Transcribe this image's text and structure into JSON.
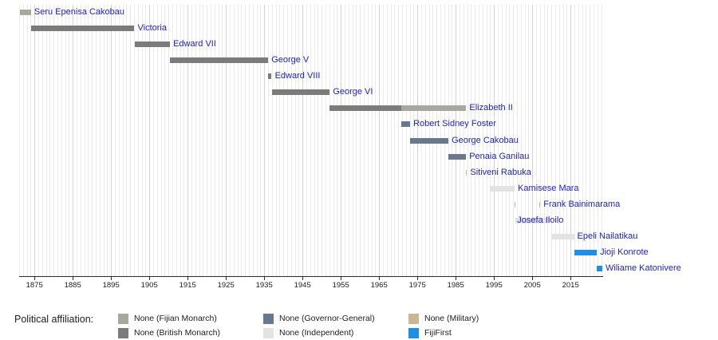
{
  "chart_data": {
    "type": "timeline",
    "title": "",
    "x_axis": {
      "start": 1871,
      "end": 2023.5,
      "ticks": [
        1875,
        1885,
        1895,
        1905,
        1915,
        1925,
        1935,
        1945,
        1955,
        1965,
        1975,
        1985,
        1995,
        2005,
        2015
      ],
      "gridline_interval": 1
    },
    "colors": {
      "fijian_monarch": "#a9a89e",
      "british_monarch": "#7b7b7b",
      "governor_general": "#68788e",
      "independent": "#e3e3e3",
      "military": "#c8b795",
      "fijifirst": "#1e8fe6",
      "person_label_text": "#2121c8",
      "axis": "#2a2a2a",
      "gridline_minor": "#ebebeb",
      "gridline_major": "#d2d2d2"
    },
    "rows": [
      {
        "name": "Seru Epenisa Cakobau",
        "label_anchor": "end",
        "segments": [
          {
            "start": 1871.3,
            "end": 1874.1,
            "affiliation": "fijian_monarch"
          }
        ]
      },
      {
        "name": "Victoria",
        "label_anchor": "end",
        "segments": [
          {
            "start": 1874.1,
            "end": 1901.1,
            "affiliation": "british_monarch"
          }
        ]
      },
      {
        "name": "Edward VII",
        "label_anchor": "end",
        "segments": [
          {
            "start": 1901.1,
            "end": 1910.4,
            "affiliation": "british_monarch"
          }
        ]
      },
      {
        "name": "George V",
        "label_anchor": "end",
        "segments": [
          {
            "start": 1910.4,
            "end": 1936.05,
            "affiliation": "british_monarch"
          }
        ]
      },
      {
        "name": "Edward VIII",
        "label_anchor": "end",
        "segments": [
          {
            "start": 1936.05,
            "end": 1936.95,
            "affiliation": "british_monarch"
          }
        ]
      },
      {
        "name": "George VI",
        "label_anchor": "end",
        "segments": [
          {
            "start": 1936.95,
            "end": 1952.1,
            "affiliation": "british_monarch"
          }
        ]
      },
      {
        "name": "Elizabeth II",
        "label_anchor": "end",
        "segments": [
          {
            "start": 1952.1,
            "end": 1970.8,
            "affiliation": "british_monarch"
          },
          {
            "start": 1970.8,
            "end": 1987.75,
            "affiliation": "fijian_monarch"
          }
        ]
      },
      {
        "name": "Robert Sidney Foster",
        "label_anchor": "end",
        "segments": [
          {
            "start": 1970.8,
            "end": 1973.1,
            "affiliation": "governor_general"
          }
        ]
      },
      {
        "name": "George Cakobau",
        "label_anchor": "end",
        "segments": [
          {
            "start": 1973.1,
            "end": 1983.1,
            "affiliation": "governor_general"
          }
        ]
      },
      {
        "name": "Penaia Ganilau",
        "label_anchor": "end",
        "segments": [
          {
            "start": 1983.1,
            "end": 1987.7,
            "affiliation": "governor_general"
          }
        ]
      },
      {
        "name": "Sitiveni Rabuka",
        "label_anchor": "end",
        "segments": [
          {
            "start": 1987.7,
            "end": 1987.95,
            "affiliation": "military"
          }
        ]
      },
      {
        "name": "Kamisese Mara",
        "label_anchor": "end",
        "segments": [
          {
            "start": 1993.95,
            "end": 2000.4,
            "affiliation": "independent"
          }
        ]
      },
      {
        "name": "Frank Bainimarama",
        "label_anchor": "end",
        "segments": [
          {
            "start": 2000.3,
            "end": 2000.65,
            "affiliation": "military"
          },
          {
            "start": 2006.9,
            "end": 2007.1,
            "affiliation": "military"
          }
        ]
      },
      {
        "name": "Josefa Iloilo",
        "label_anchor": "start",
        "segments": [
          {
            "start": 2000.65,
            "end": 2006.85,
            "affiliation": "independent"
          },
          {
            "start": 2007.15,
            "end": 2009.6,
            "affiliation": "independent"
          }
        ]
      },
      {
        "name": "Epeli Nailatikau",
        "label_anchor": "end",
        "segments": [
          {
            "start": 2009.85,
            "end": 2015.9,
            "affiliation": "independent"
          }
        ]
      },
      {
        "name": "Jioji Konrote",
        "label_anchor": "end",
        "segments": [
          {
            "start": 2015.9,
            "end": 2021.85,
            "affiliation": "fijifirst"
          }
        ]
      },
      {
        "name": "Wiliame Katonivere",
        "label_anchor": "end",
        "segments": [
          {
            "start": 2021.85,
            "end": 2023.3,
            "affiliation": "fijifirst"
          }
        ]
      }
    ],
    "legend": {
      "title": "Political affiliation:",
      "entries": [
        {
          "label": "None (Fijian Monarch)",
          "affiliation": "fijian_monarch"
        },
        {
          "label": "None (British Monarch)",
          "affiliation": "british_monarch"
        },
        {
          "label": "None (Governor-General)",
          "affiliation": "governor_general"
        },
        {
          "label": "None (Independent)",
          "affiliation": "independent"
        },
        {
          "label": "None (Military)",
          "affiliation": "military"
        },
        {
          "label": "FijiFirst",
          "affiliation": "fijifirst"
        }
      ]
    }
  }
}
